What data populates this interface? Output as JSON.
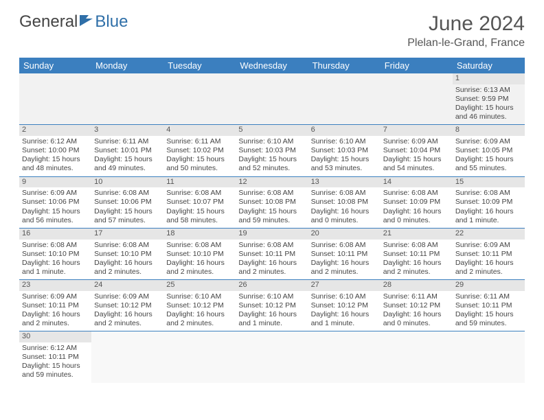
{
  "brand": {
    "part1": "General",
    "part2": "Blue"
  },
  "title": "June 2024",
  "location": "Plelan-le-Grand, France",
  "colors": {
    "header_bg": "#3b7fbf",
    "header_text": "#ffffff",
    "day_header_bg": "#e6e6e6",
    "row_divider": "#3b7fbf",
    "logo_accent": "#2f6fa8"
  },
  "weekdays": [
    "Sunday",
    "Monday",
    "Tuesday",
    "Wednesday",
    "Thursday",
    "Friday",
    "Saturday"
  ],
  "weeks": [
    [
      null,
      null,
      null,
      null,
      null,
      null,
      {
        "n": "1",
        "sr": "Sunrise: 6:13 AM",
        "ss": "Sunset: 9:59 PM",
        "d1": "Daylight: 15 hours",
        "d2": "and 46 minutes."
      }
    ],
    [
      {
        "n": "2",
        "sr": "Sunrise: 6:12 AM",
        "ss": "Sunset: 10:00 PM",
        "d1": "Daylight: 15 hours",
        "d2": "and 48 minutes."
      },
      {
        "n": "3",
        "sr": "Sunrise: 6:11 AM",
        "ss": "Sunset: 10:01 PM",
        "d1": "Daylight: 15 hours",
        "d2": "and 49 minutes."
      },
      {
        "n": "4",
        "sr": "Sunrise: 6:11 AM",
        "ss": "Sunset: 10:02 PM",
        "d1": "Daylight: 15 hours",
        "d2": "and 50 minutes."
      },
      {
        "n": "5",
        "sr": "Sunrise: 6:10 AM",
        "ss": "Sunset: 10:03 PM",
        "d1": "Daylight: 15 hours",
        "d2": "and 52 minutes."
      },
      {
        "n": "6",
        "sr": "Sunrise: 6:10 AM",
        "ss": "Sunset: 10:03 PM",
        "d1": "Daylight: 15 hours",
        "d2": "and 53 minutes."
      },
      {
        "n": "7",
        "sr": "Sunrise: 6:09 AM",
        "ss": "Sunset: 10:04 PM",
        "d1": "Daylight: 15 hours",
        "d2": "and 54 minutes."
      },
      {
        "n": "8",
        "sr": "Sunrise: 6:09 AM",
        "ss": "Sunset: 10:05 PM",
        "d1": "Daylight: 15 hours",
        "d2": "and 55 minutes."
      }
    ],
    [
      {
        "n": "9",
        "sr": "Sunrise: 6:09 AM",
        "ss": "Sunset: 10:06 PM",
        "d1": "Daylight: 15 hours",
        "d2": "and 56 minutes."
      },
      {
        "n": "10",
        "sr": "Sunrise: 6:08 AM",
        "ss": "Sunset: 10:06 PM",
        "d1": "Daylight: 15 hours",
        "d2": "and 57 minutes."
      },
      {
        "n": "11",
        "sr": "Sunrise: 6:08 AM",
        "ss": "Sunset: 10:07 PM",
        "d1": "Daylight: 15 hours",
        "d2": "and 58 minutes."
      },
      {
        "n": "12",
        "sr": "Sunrise: 6:08 AM",
        "ss": "Sunset: 10:08 PM",
        "d1": "Daylight: 15 hours",
        "d2": "and 59 minutes."
      },
      {
        "n": "13",
        "sr": "Sunrise: 6:08 AM",
        "ss": "Sunset: 10:08 PM",
        "d1": "Daylight: 16 hours",
        "d2": "and 0 minutes."
      },
      {
        "n": "14",
        "sr": "Sunrise: 6:08 AM",
        "ss": "Sunset: 10:09 PM",
        "d1": "Daylight: 16 hours",
        "d2": "and 0 minutes."
      },
      {
        "n": "15",
        "sr": "Sunrise: 6:08 AM",
        "ss": "Sunset: 10:09 PM",
        "d1": "Daylight: 16 hours",
        "d2": "and 1 minute."
      }
    ],
    [
      {
        "n": "16",
        "sr": "Sunrise: 6:08 AM",
        "ss": "Sunset: 10:10 PM",
        "d1": "Daylight: 16 hours",
        "d2": "and 1 minute."
      },
      {
        "n": "17",
        "sr": "Sunrise: 6:08 AM",
        "ss": "Sunset: 10:10 PM",
        "d1": "Daylight: 16 hours",
        "d2": "and 2 minutes."
      },
      {
        "n": "18",
        "sr": "Sunrise: 6:08 AM",
        "ss": "Sunset: 10:10 PM",
        "d1": "Daylight: 16 hours",
        "d2": "and 2 minutes."
      },
      {
        "n": "19",
        "sr": "Sunrise: 6:08 AM",
        "ss": "Sunset: 10:11 PM",
        "d1": "Daylight: 16 hours",
        "d2": "and 2 minutes."
      },
      {
        "n": "20",
        "sr": "Sunrise: 6:08 AM",
        "ss": "Sunset: 10:11 PM",
        "d1": "Daylight: 16 hours",
        "d2": "and 2 minutes."
      },
      {
        "n": "21",
        "sr": "Sunrise: 6:08 AM",
        "ss": "Sunset: 10:11 PM",
        "d1": "Daylight: 16 hours",
        "d2": "and 2 minutes."
      },
      {
        "n": "22",
        "sr": "Sunrise: 6:09 AM",
        "ss": "Sunset: 10:11 PM",
        "d1": "Daylight: 16 hours",
        "d2": "and 2 minutes."
      }
    ],
    [
      {
        "n": "23",
        "sr": "Sunrise: 6:09 AM",
        "ss": "Sunset: 10:11 PM",
        "d1": "Daylight: 16 hours",
        "d2": "and 2 minutes."
      },
      {
        "n": "24",
        "sr": "Sunrise: 6:09 AM",
        "ss": "Sunset: 10:12 PM",
        "d1": "Daylight: 16 hours",
        "d2": "and 2 minutes."
      },
      {
        "n": "25",
        "sr": "Sunrise: 6:10 AM",
        "ss": "Sunset: 10:12 PM",
        "d1": "Daylight: 16 hours",
        "d2": "and 2 minutes."
      },
      {
        "n": "26",
        "sr": "Sunrise: 6:10 AM",
        "ss": "Sunset: 10:12 PM",
        "d1": "Daylight: 16 hours",
        "d2": "and 1 minute."
      },
      {
        "n": "27",
        "sr": "Sunrise: 6:10 AM",
        "ss": "Sunset: 10:12 PM",
        "d1": "Daylight: 16 hours",
        "d2": "and 1 minute."
      },
      {
        "n": "28",
        "sr": "Sunrise: 6:11 AM",
        "ss": "Sunset: 10:12 PM",
        "d1": "Daylight: 16 hours",
        "d2": "and 0 minutes."
      },
      {
        "n": "29",
        "sr": "Sunrise: 6:11 AM",
        "ss": "Sunset: 10:11 PM",
        "d1": "Daylight: 15 hours",
        "d2": "and 59 minutes."
      }
    ],
    [
      {
        "n": "30",
        "sr": "Sunrise: 6:12 AM",
        "ss": "Sunset: 10:11 PM",
        "d1": "Daylight: 15 hours",
        "d2": "and 59 minutes."
      },
      null,
      null,
      null,
      null,
      null,
      null
    ]
  ]
}
